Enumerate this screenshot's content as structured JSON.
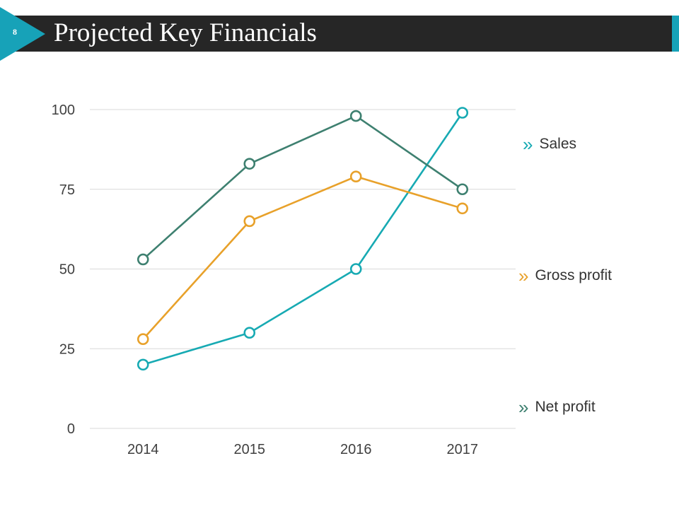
{
  "slide": {
    "page_number": "8",
    "title": "Projected Key Financials"
  },
  "colors": {
    "title_bar": "#262626",
    "accent": "#17a2b8",
    "sales": "#17aab3",
    "gross_profit": "#e8a12a",
    "net_profit": "#3e8070",
    "grid": "#d9d9d9",
    "tick_text": "#404040"
  },
  "legend": {
    "sales": {
      "chevron": "»",
      "label": "Sales"
    },
    "gross_profit": {
      "chevron": "»",
      "label": "Gross profit"
    },
    "net_profit": {
      "chevron": "»",
      "label": "Net profit"
    }
  },
  "chart_data": {
    "type": "line",
    "title": "",
    "xlabel": "",
    "ylabel": "",
    "categories": [
      "2014",
      "2015",
      "2016",
      "2017"
    ],
    "ylim": [
      0,
      100
    ],
    "yticks": [
      0,
      25,
      50,
      75,
      100
    ],
    "grid": true,
    "legend_position": "right",
    "series": [
      {
        "name": "Sales",
        "color": "#17aab3",
        "values": [
          20,
          30,
          50,
          99
        ]
      },
      {
        "name": "Gross profit",
        "color": "#e8a12a",
        "values": [
          28,
          65,
          79,
          69
        ]
      },
      {
        "name": "Net profit",
        "color": "#3e8070",
        "values": [
          53,
          83,
          98,
          75
        ]
      }
    ]
  }
}
